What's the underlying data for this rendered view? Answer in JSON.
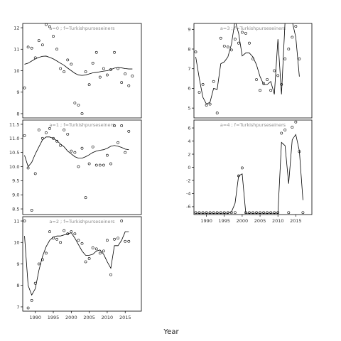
{
  "chart_data": [
    {
      "type": "scatter",
      "title": "a=0  ;  f=Turkishpurseseiners",
      "xlim": [
        1986.5,
        2019.5
      ],
      "ylim": [
        7.8,
        12.2
      ],
      "yticks": [
        8,
        9,
        10,
        11,
        12
      ],
      "xticks": [],
      "points": [
        [
          1987,
          9.2
        ],
        [
          1988,
          11.1
        ],
        [
          1989,
          11.05
        ],
        [
          1990,
          10.6
        ],
        [
          1991,
          11.4
        ],
        [
          1992,
          11.2
        ],
        [
          1993,
          12.15
        ],
        [
          1994,
          12.05
        ],
        [
          1995,
          11.6
        ],
        [
          1996,
          11.0
        ],
        [
          1997,
          10.1
        ],
        [
          1998,
          9.95
        ],
        [
          1999,
          10.5
        ],
        [
          2000,
          10.3
        ],
        [
          2001,
          8.5
        ],
        [
          2002,
          8.4
        ],
        [
          2003,
          8.0
        ],
        [
          2004,
          9.95
        ],
        [
          2005,
          9.35
        ],
        [
          2006,
          10.35
        ],
        [
          2007,
          10.85
        ],
        [
          2008,
          9.7
        ],
        [
          2009,
          10.1
        ],
        [
          2010,
          9.8
        ],
        [
          2011,
          10.05
        ],
        [
          2012,
          10.85
        ],
        [
          2013,
          10.1
        ],
        [
          2014,
          9.45
        ],
        [
          2015,
          9.85
        ],
        [
          2016,
          9.3
        ],
        [
          2017,
          9.75
        ]
      ],
      "line": [
        [
          1987,
          10.3
        ],
        [
          1988,
          10.35
        ],
        [
          1989,
          10.45
        ],
        [
          1990,
          10.55
        ],
        [
          1991,
          10.62
        ],
        [
          1992,
          10.67
        ],
        [
          1993,
          10.68
        ],
        [
          1994,
          10.62
        ],
        [
          1995,
          10.55
        ],
        [
          1996,
          10.45
        ],
        [
          1997,
          10.35
        ],
        [
          1998,
          10.25
        ],
        [
          1999,
          10.12
        ],
        [
          2000,
          10.0
        ],
        [
          2001,
          9.88
        ],
        [
          2002,
          9.8
        ],
        [
          2003,
          9.78
        ],
        [
          2004,
          9.8
        ],
        [
          2005,
          9.85
        ],
        [
          2006,
          9.9
        ],
        [
          2007,
          9.92
        ],
        [
          2008,
          9.95
        ],
        [
          2009,
          9.98
        ],
        [
          2010,
          10.0
        ],
        [
          2011,
          10.05
        ],
        [
          2012,
          10.12
        ],
        [
          2013,
          10.15
        ],
        [
          2014,
          10.13
        ],
        [
          2015,
          10.1
        ],
        [
          2016,
          10.08
        ],
        [
          2017,
          10.08
        ]
      ]
    },
    {
      "type": "scatter",
      "title": "a=1  ;  f=Turkishpurseseiners",
      "xlim": [
        1986.5,
        2019.5
      ],
      "ylim": [
        8.3,
        11.65
      ],
      "yticks": [
        8.5,
        9.0,
        9.5,
        10.0,
        10.5,
        11.0,
        11.5
      ],
      "xticks": [],
      "points": [
        [
          1987,
          11.1
        ],
        [
          1988,
          9.95
        ],
        [
          1989,
          8.45
        ],
        [
          1990,
          9.75
        ],
        [
          1991,
          11.3
        ],
        [
          1992,
          11.0
        ],
        [
          1993,
          11.2
        ],
        [
          1994,
          11.35
        ],
        [
          1995,
          11.0
        ],
        [
          1996,
          10.9
        ],
        [
          1997,
          10.75
        ],
        [
          1998,
          11.3
        ],
        [
          1999,
          11.15
        ],
        [
          2000,
          10.55
        ],
        [
          2001,
          10.5
        ],
        [
          2002,
          10.0
        ],
        [
          2003,
          10.65
        ],
        [
          2004,
          8.9
        ],
        [
          2005,
          10.1
        ],
        [
          2006,
          10.7
        ],
        [
          2007,
          10.05
        ],
        [
          2008,
          10.05
        ],
        [
          2009,
          10.05
        ],
        [
          2010,
          10.4
        ],
        [
          2011,
          10.1
        ],
        [
          2012,
          11.45
        ],
        [
          2013,
          10.85
        ],
        [
          2014,
          11.45
        ],
        [
          2015,
          10.5
        ],
        [
          2016,
          11.25
        ]
      ],
      "line": [
        [
          1987,
          10.4
        ],
        [
          1988,
          10.0
        ],
        [
          1989,
          10.15
        ],
        [
          1990,
          10.45
        ],
        [
          1991,
          10.7
        ],
        [
          1992,
          10.95
        ],
        [
          1993,
          11.05
        ],
        [
          1994,
          11.05
        ],
        [
          1995,
          11.0
        ],
        [
          1996,
          10.92
        ],
        [
          1997,
          10.8
        ],
        [
          1998,
          10.7
        ],
        [
          1999,
          10.55
        ],
        [
          2000,
          10.45
        ],
        [
          2001,
          10.35
        ],
        [
          2002,
          10.3
        ],
        [
          2003,
          10.3
        ],
        [
          2004,
          10.35
        ],
        [
          2005,
          10.42
        ],
        [
          2006,
          10.5
        ],
        [
          2007,
          10.55
        ],
        [
          2008,
          10.58
        ],
        [
          2009,
          10.6
        ],
        [
          2010,
          10.65
        ],
        [
          2011,
          10.72
        ],
        [
          2012,
          10.75
        ],
        [
          2013,
          10.72
        ],
        [
          2014,
          10.68
        ],
        [
          2015,
          10.62
        ],
        [
          2016,
          10.6
        ]
      ]
    },
    {
      "type": "scatter",
      "title": "a=2  ;  f=Turkishpurseseiners",
      "xlim": [
        1986.5,
        2019.5
      ],
      "ylim": [
        6.8,
        11.2
      ],
      "yticks": [
        7,
        8,
        9,
        10,
        11
      ],
      "xticks": [
        1990,
        1995,
        2000,
        2005,
        2010,
        2015
      ],
      "points": [
        [
          1987,
          11.0
        ],
        [
          1988,
          6.95
        ],
        [
          1989,
          7.3
        ],
        [
          1990,
          8.1
        ],
        [
          1991,
          9.0
        ],
        [
          1992,
          9.2
        ],
        [
          1993,
          9.5
        ],
        [
          1994,
          10.5
        ],
        [
          1995,
          10.2
        ],
        [
          1996,
          10.15
        ],
        [
          1997,
          10.0
        ],
        [
          1998,
          10.55
        ],
        [
          1999,
          10.4
        ],
        [
          2000,
          10.5
        ],
        [
          2001,
          10.4
        ],
        [
          2002,
          10.1
        ],
        [
          2003,
          9.95
        ],
        [
          2004,
          9.1
        ],
        [
          2005,
          9.25
        ],
        [
          2006,
          9.75
        ],
        [
          2007,
          9.7
        ],
        [
          2008,
          9.5
        ],
        [
          2009,
          9.6
        ],
        [
          2010,
          10.1
        ],
        [
          2011,
          8.5
        ],
        [
          2012,
          10.15
        ],
        [
          2013,
          10.2
        ],
        [
          2014,
          11.0
        ],
        [
          2015,
          10.05
        ],
        [
          2016,
          10.05
        ]
      ],
      "line": [
        [
          1987,
          10.3
        ],
        [
          1988,
          8.0
        ],
        [
          1989,
          7.55
        ],
        [
          1990,
          7.85
        ],
        [
          1991,
          8.7
        ],
        [
          1992,
          9.35
        ],
        [
          1993,
          9.8
        ],
        [
          1994,
          10.1
        ],
        [
          1995,
          10.25
        ],
        [
          1996,
          10.3
        ],
        [
          1997,
          10.3
        ],
        [
          1998,
          10.35
        ],
        [
          1999,
          10.4
        ],
        [
          2000,
          10.45
        ],
        [
          2001,
          10.2
        ],
        [
          2002,
          9.9
        ],
        [
          2003,
          9.6
        ],
        [
          2004,
          9.4
        ],
        [
          2005,
          9.4
        ],
        [
          2006,
          9.45
        ],
        [
          2007,
          9.6
        ],
        [
          2008,
          9.65
        ],
        [
          2009,
          9.45
        ],
        [
          2010,
          9.1
        ],
        [
          2011,
          8.8
        ],
        [
          2012,
          9.85
        ],
        [
          2013,
          9.85
        ],
        [
          2014,
          10.1
        ],
        [
          2015,
          10.5
        ],
        [
          2016,
          10.5
        ]
      ]
    },
    {
      "type": "scatter",
      "title": "a=3  ;  f=Turkishpurseseiners",
      "xlim": [
        1986.5,
        2019.5
      ],
      "ylim": [
        4.5,
        9.3
      ],
      "yticks": [
        5,
        6,
        7,
        8,
        9
      ],
      "xticks": [],
      "points": [
        [
          1987,
          7.85
        ],
        [
          1988,
          5.8
        ],
        [
          1989,
          6.2
        ],
        [
          1990,
          5.15
        ],
        [
          1991,
          5.2
        ],
        [
          1992,
          6.35
        ],
        [
          1993,
          4.75
        ],
        [
          1994,
          8.55
        ],
        [
          1995,
          8.15
        ],
        [
          1996,
          8.1
        ],
        [
          1997,
          7.95
        ],
        [
          1998,
          8.5
        ],
        [
          1999,
          8.3
        ],
        [
          2000,
          8.85
        ],
        [
          2001,
          8.8
        ],
        [
          2002,
          8.3
        ],
        [
          2003,
          7.5
        ],
        [
          2004,
          6.45
        ],
        [
          2005,
          5.9
        ],
        [
          2006,
          6.25
        ],
        [
          2007,
          6.45
        ],
        [
          2008,
          5.9
        ],
        [
          2009,
          6.9
        ],
        [
          2010,
          6.65
        ],
        [
          2011,
          6.2
        ],
        [
          2012,
          7.5
        ],
        [
          2013,
          8.0
        ],
        [
          2014,
          8.6
        ],
        [
          2015,
          9.15
        ],
        [
          2016,
          7.5
        ]
      ],
      "line": [
        [
          1987,
          7.6
        ],
        [
          1988,
          6.5
        ],
        [
          1989,
          5.55
        ],
        [
          1990,
          5.2
        ],
        [
          1991,
          5.3
        ],
        [
          1992,
          6.0
        ],
        [
          1993,
          5.95
        ],
        [
          1994,
          7.25
        ],
        [
          1995,
          7.35
        ],
        [
          1996,
          7.6
        ],
        [
          1997,
          8.25
        ],
        [
          1998,
          9.45
        ],
        [
          1999,
          8.8
        ],
        [
          2000,
          7.65
        ],
        [
          2001,
          7.8
        ],
        [
          2002,
          7.8
        ],
        [
          2003,
          7.6
        ],
        [
          2004,
          7.2
        ],
        [
          2005,
          6.6
        ],
        [
          2006,
          6.2
        ],
        [
          2007,
          6.2
        ],
        [
          2008,
          6.35
        ],
        [
          2009,
          5.7
        ],
        [
          2010,
          8.5
        ],
        [
          2011,
          5.7
        ],
        [
          2012,
          9.4
        ],
        [
          2013,
          9.4
        ],
        [
          2014,
          9.4
        ],
        [
          2015,
          8.6
        ],
        [
          2016,
          6.6
        ]
      ]
    },
    {
      "type": "scatter",
      "title": "a=4  ;  f=Turkishpurseseiners",
      "xlim": [
        1986.5,
        2019.5
      ],
      "ylim": [
        -7.2,
        7.2
      ],
      "yticks": [
        -6,
        -4,
        -2,
        0,
        2,
        4,
        6
      ],
      "xticks": [
        1990,
        1995,
        2000,
        2005,
        2010,
        2015
      ],
      "points": [
        [
          1987,
          -6.9
        ],
        [
          1988,
          -6.9
        ],
        [
          1989,
          -6.9
        ],
        [
          1990,
          -6.9
        ],
        [
          1991,
          -6.9
        ],
        [
          1992,
          -6.9
        ],
        [
          1993,
          -6.9
        ],
        [
          1994,
          -6.9
        ],
        [
          1995,
          -6.9
        ],
        [
          1996,
          -6.9
        ],
        [
          1997,
          -6.9
        ],
        [
          1998,
          -6.9
        ],
        [
          1999,
          -1.3
        ],
        [
          2000,
          -0.1
        ],
        [
          2001,
          -6.9
        ],
        [
          2002,
          -6.9
        ],
        [
          2003,
          -6.9
        ],
        [
          2004,
          -6.9
        ],
        [
          2005,
          -6.9
        ],
        [
          2006,
          -6.9
        ],
        [
          2007,
          -6.9
        ],
        [
          2008,
          -6.9
        ],
        [
          2009,
          -6.9
        ],
        [
          2010,
          -6.9
        ],
        [
          2011,
          5.2
        ],
        [
          2012,
          5.7
        ],
        [
          2013,
          -6.9
        ],
        [
          2014,
          6.1
        ],
        [
          2015,
          6.9
        ],
        [
          2016,
          2.4
        ],
        [
          2017,
          -6.9
        ]
      ],
      "line": [
        [
          1987,
          -7.0
        ],
        [
          1988,
          -7.0
        ],
        [
          1989,
          -7.0
        ],
        [
          1990,
          -7.0
        ],
        [
          1991,
          -7.0
        ],
        [
          1992,
          -7.0
        ],
        [
          1993,
          -7.0
        ],
        [
          1994,
          -7.0
        ],
        [
          1995,
          -7.0
        ],
        [
          1996,
          -7.0
        ],
        [
          1997,
          -6.8
        ],
        [
          1998,
          -5.5
        ],
        [
          1999,
          -1.3
        ],
        [
          2000,
          -1.0
        ],
        [
          2001,
          -7.0
        ],
        [
          2002,
          -7.0
        ],
        [
          2003,
          -7.0
        ],
        [
          2004,
          -7.0
        ],
        [
          2005,
          -7.0
        ],
        [
          2006,
          -7.0
        ],
        [
          2007,
          -7.0
        ],
        [
          2008,
          -7.0
        ],
        [
          2009,
          -7.0
        ],
        [
          2010,
          -7.0
        ],
        [
          2011,
          3.8
        ],
        [
          2012,
          3.3
        ],
        [
          2013,
          -2.5
        ],
        [
          2014,
          4.2
        ],
        [
          2015,
          5.0
        ],
        [
          2016,
          2.5
        ],
        [
          2017,
          -5.0
        ]
      ]
    }
  ],
  "xlabel": "Year"
}
